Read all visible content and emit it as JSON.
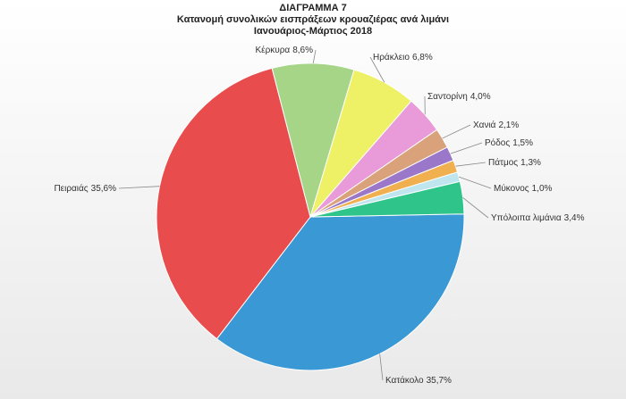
{
  "chart_data": {
    "type": "pie",
    "title": "ΔΙΑΓΡΑΜΜΑ 7",
    "subtitle": [
      "Κατανομή συνολικών εισπράξεων κρουαζιέρας ανά  λιμάνι",
      "Ιανουάριος-Μάρτιος 2018"
    ],
    "categories": [
      "Κατάκολο",
      "Πειραιάς",
      "Κέρκυρα",
      "Ηράκλειο",
      "Σαντορίνη",
      "Χανιά",
      "Ρόδος",
      "Πάτμος",
      "Μύκονος",
      "Υπόλοιπα λιμάνια"
    ],
    "values": [
      35.7,
      35.6,
      8.6,
      6.8,
      4.0,
      2.1,
      1.5,
      1.3,
      1.0,
      3.4
    ],
    "value_labels": [
      "35,7%",
      "35,6%",
      "8,6%",
      "6,8%",
      "4,0%",
      "2,1%",
      "1,5%",
      "1,3%",
      "1,0%",
      "3,4%"
    ],
    "colors": [
      "#3a98d4",
      "#e84c4c",
      "#a6d588",
      "#eef065",
      "#e99ad8",
      "#d9a27a",
      "#9a77c8",
      "#f0b050",
      "#bfe6ee",
      "#2fc489"
    ]
  }
}
